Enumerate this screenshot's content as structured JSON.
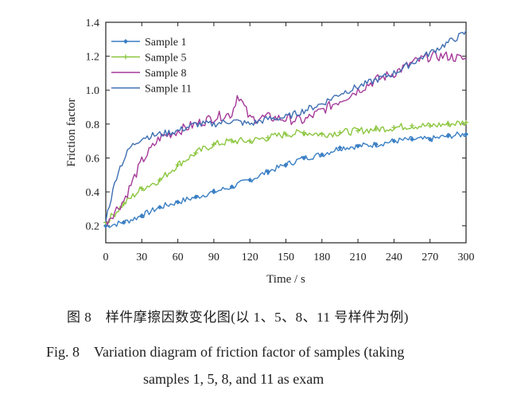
{
  "chart_data": {
    "type": "line",
    "xlabel": "Time / s",
    "ylabel": "Friction factor",
    "xlim": [
      0,
      300
    ],
    "ylim": [
      0.1,
      1.4
    ],
    "x_ticks": [
      "0",
      "30",
      "60",
      "90",
      "120",
      "150",
      "180",
      "210",
      "240",
      "270",
      "300"
    ],
    "y_ticks": [
      "0.2",
      "0.4",
      "0.6",
      "0.8",
      "1.0",
      "1.2",
      "1.4"
    ],
    "legend_position": "top-left",
    "grid": false,
    "series": [
      {
        "name": "Sample 1",
        "color": "#3a7fc4",
        "marker": "diamond",
        "x": [
          0,
          15,
          30,
          45,
          60,
          75,
          90,
          105,
          120,
          135,
          150,
          165,
          180,
          195,
          210,
          225,
          240,
          255,
          270,
          285,
          300
        ],
        "y": [
          0.2,
          0.22,
          0.26,
          0.31,
          0.34,
          0.37,
          0.4,
          0.43,
          0.47,
          0.52,
          0.56,
          0.6,
          0.62,
          0.66,
          0.67,
          0.68,
          0.7,
          0.71,
          0.71,
          0.73,
          0.74
        ]
      },
      {
        "name": "Sample 5",
        "color": "#8cc63f",
        "marker": "plus",
        "x": [
          0,
          15,
          30,
          45,
          60,
          75,
          90,
          105,
          120,
          135,
          150,
          165,
          180,
          195,
          210,
          225,
          240,
          255,
          270,
          285,
          300
        ],
        "y": [
          0.22,
          0.33,
          0.42,
          0.47,
          0.56,
          0.63,
          0.68,
          0.7,
          0.7,
          0.72,
          0.74,
          0.75,
          0.74,
          0.75,
          0.76,
          0.77,
          0.78,
          0.79,
          0.79,
          0.8,
          0.81
        ]
      },
      {
        "name": "Sample 8",
        "color": "#a63a9a",
        "marker": "none",
        "x": [
          0,
          15,
          30,
          45,
          60,
          75,
          90,
          105,
          110,
          120,
          135,
          150,
          165,
          180,
          195,
          210,
          225,
          240,
          255,
          270,
          285,
          300
        ],
        "y": [
          0.22,
          0.35,
          0.58,
          0.72,
          0.76,
          0.8,
          0.84,
          0.86,
          0.98,
          0.83,
          0.84,
          0.83,
          0.82,
          0.88,
          0.94,
          1.0,
          1.06,
          1.1,
          1.16,
          1.2,
          1.2,
          1.18
        ]
      },
      {
        "name": "Sample 11",
        "color": "#3f6fb2",
        "marker": "none",
        "x": [
          0,
          10,
          20,
          30,
          45,
          60,
          75,
          90,
          105,
          120,
          135,
          150,
          165,
          180,
          195,
          210,
          225,
          240,
          255,
          270,
          285,
          300
        ],
        "y": [
          0.24,
          0.52,
          0.66,
          0.72,
          0.74,
          0.76,
          0.8,
          0.8,
          0.82,
          0.8,
          0.83,
          0.84,
          0.88,
          0.92,
          0.98,
          1.02,
          1.06,
          1.1,
          1.16,
          1.22,
          1.28,
          1.34
        ]
      }
    ]
  },
  "caption": {
    "cn": "图 8　样件摩擦因数变化图(以 1、5、8、11 号样件为例)",
    "en_line1": "Fig. 8　Variation diagram of friction factor of samples (taking",
    "en_line2": "samples 1, 5, 8, and 11 as exam"
  }
}
